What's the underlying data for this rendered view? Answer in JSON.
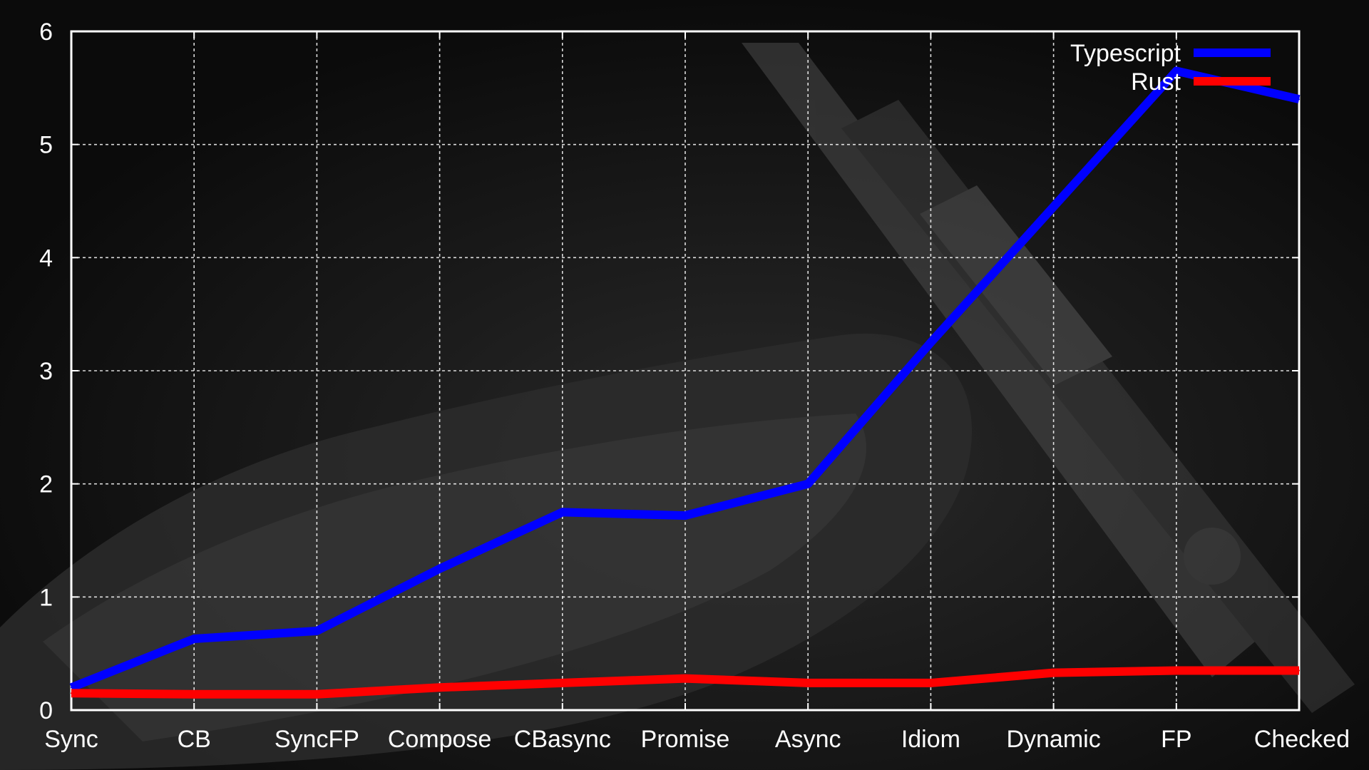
{
  "chart_data": {
    "type": "line",
    "title": "",
    "xlabel": "",
    "ylabel": "",
    "categories": [
      "Sync",
      "CB",
      "SyncFP",
      "Compose",
      "CBasync",
      "Promise",
      "Async",
      "Idiom",
      "Dynamic",
      "FP",
      "Checked"
    ],
    "ylim": [
      0,
      6
    ],
    "yticks": [
      0,
      1,
      2,
      3,
      4,
      5,
      6
    ],
    "grid": true,
    "legend_position": "top-right",
    "series": [
      {
        "name": "Typescript",
        "color": "#0000ff",
        "values": [
          0.2,
          0.63,
          0.7,
          1.25,
          1.75,
          1.72,
          2.0,
          3.25,
          4.45,
          5.65,
          5.4
        ]
      },
      {
        "name": "Rust",
        "color": "#ff0000",
        "values": [
          0.15,
          0.14,
          0.14,
          0.2,
          0.24,
          0.28,
          0.24,
          0.24,
          0.33,
          0.35,
          0.35
        ]
      }
    ],
    "background": {
      "color": "#0b0b0b",
      "description": "dark photo of a sandwich and a caliper"
    },
    "axis_color": "#ffffff"
  }
}
